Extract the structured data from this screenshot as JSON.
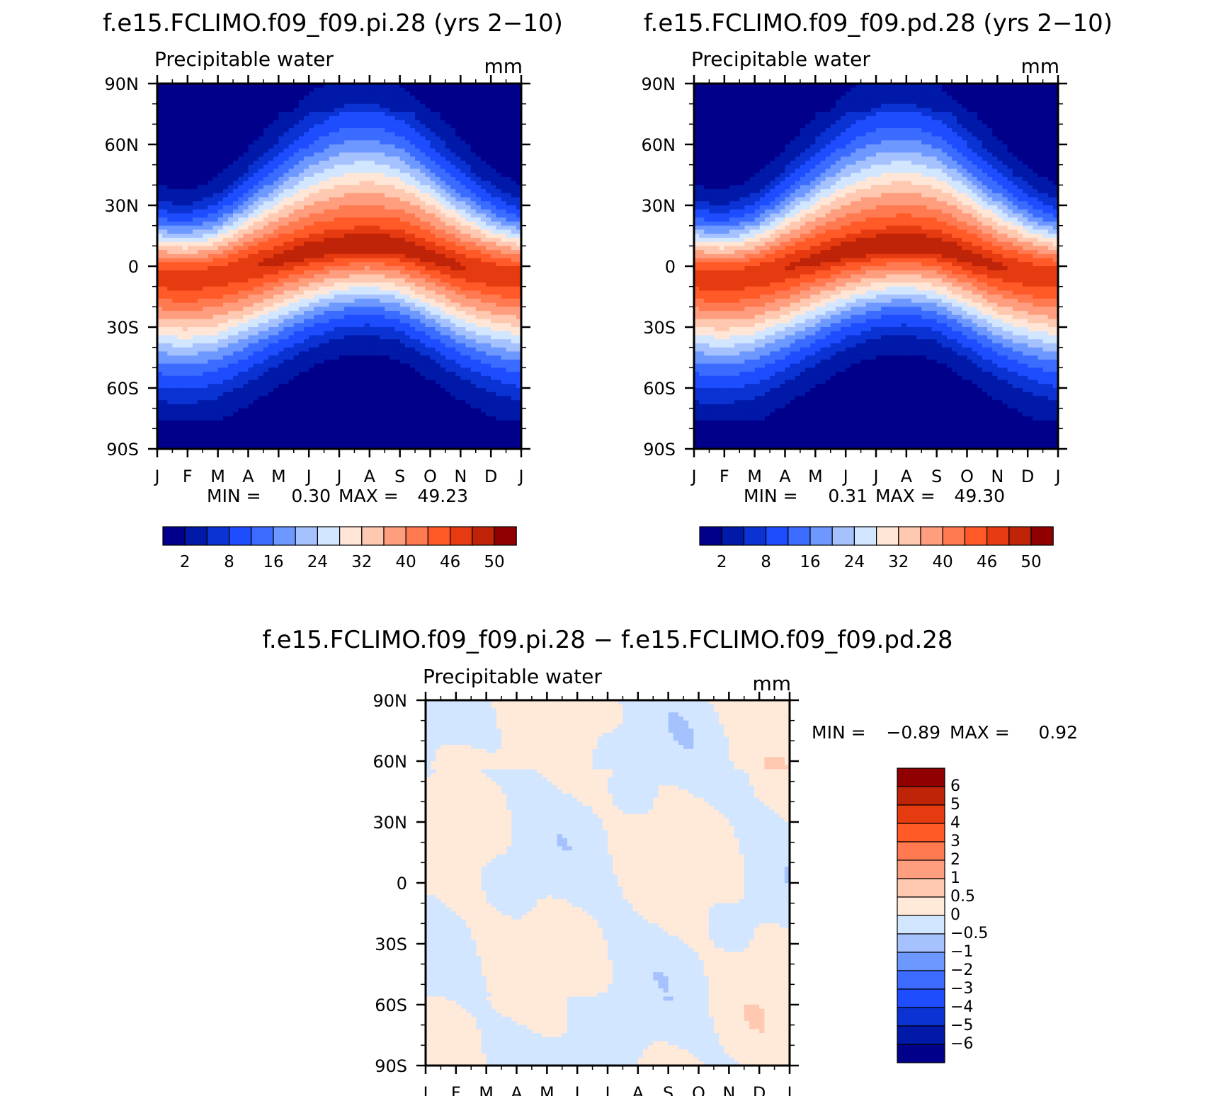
{
  "chart_data": [
    {
      "type": "heatmap",
      "title": "f.e15.FCLIMO.f09_f09.pi.28 (yrs 2−10)",
      "variable": "Precipitable water",
      "units": "mm",
      "x_ticks": [
        "J",
        "F",
        "M",
        "A",
        "M",
        "J",
        "J",
        "A",
        "S",
        "O",
        "N",
        "D",
        "J"
      ],
      "y_ticks": [
        "90N",
        "60N",
        "30N",
        "0",
        "30S",
        "60S",
        "90S"
      ],
      "ylim": [
        -90,
        90
      ],
      "min_label": "MIN =",
      "min_value": "0.30",
      "max_label": "MAX =",
      "max_value": "49.23",
      "colorbar_labels": [
        "2",
        "8",
        "16",
        "24",
        "32",
        "40",
        "46",
        "50"
      ],
      "model": {
        "kind": "pw",
        "itcz_lat": [
          -3,
          -4,
          -3,
          0,
          3,
          6,
          8,
          9,
          8,
          4,
          0,
          -2,
          -3
        ],
        "peak": 49.2,
        "floor": 0.3
      }
    },
    {
      "type": "heatmap",
      "title": "f.e15.FCLIMO.f09_f09.pd.28 (yrs 2−10)",
      "variable": "Precipitable water",
      "units": "mm",
      "x_ticks": [
        "J",
        "F",
        "M",
        "A",
        "M",
        "J",
        "J",
        "A",
        "S",
        "O",
        "N",
        "D",
        "J"
      ],
      "y_ticks": [
        "90N",
        "60N",
        "30N",
        "0",
        "30S",
        "60S",
        "90S"
      ],
      "ylim": [
        -90,
        90
      ],
      "min_label": "MIN =",
      "min_value": "0.31",
      "max_label": "MAX =",
      "max_value": "49.30",
      "colorbar_labels": [
        "2",
        "8",
        "16",
        "24",
        "32",
        "40",
        "46",
        "50"
      ],
      "model": {
        "kind": "pw",
        "itcz_lat": [
          -3,
          -4,
          -3,
          0,
          3,
          6,
          8,
          9,
          8,
          4,
          0,
          -2,
          -3
        ],
        "peak": 49.3,
        "floor": 0.31
      }
    },
    {
      "type": "heatmap",
      "title": "f.e15.FCLIMO.f09_f09.pi.28 − f.e15.FCLIMO.f09_f09.pd.28",
      "variable": "Precipitable water",
      "units": "mm",
      "x_ticks": [
        "J",
        "F",
        "M",
        "A",
        "M",
        "J",
        "J",
        "A",
        "S",
        "O",
        "N",
        "D",
        "J"
      ],
      "y_ticks": [
        "90N",
        "60N",
        "30N",
        "0",
        "30S",
        "60S",
        "90S"
      ],
      "ylim": [
        -90,
        90
      ],
      "min_label": "MIN =",
      "min_value": "−0.89",
      "max_label": "MAX =",
      "max_value": "0.92",
      "colorbar_labels": [
        "6",
        "5",
        "4",
        "3",
        "2",
        "1",
        "0.5",
        "0",
        "−0.5",
        "−1",
        "−2",
        "−3",
        "−4",
        "−5",
        "−6"
      ],
      "model": {
        "kind": "diff"
      }
    }
  ],
  "colors": {
    "pw_palette": [
      "#00008b",
      "#0019a8",
      "#0b32d2",
      "#1e4dff",
      "#3b6cff",
      "#6d98ff",
      "#a5c2ff",
      "#d2e6ff",
      "#ffe6d6",
      "#ffc8b0",
      "#ff9e7e",
      "#ff7a50",
      "#ff5a28",
      "#e63a10",
      "#c02408",
      "#900000"
    ],
    "diff_palette": [
      "#00008b",
      "#0019a8",
      "#0b32d2",
      "#1e4dff",
      "#3b6cff",
      "#6d98ff",
      "#a5c2ff",
      "#d2e6ff",
      "#ffe9d9",
      "#ffc8b0",
      "#ff9e7e",
      "#ff7a50",
      "#ff5a28",
      "#e63a10",
      "#c02408",
      "#900000"
    ]
  }
}
